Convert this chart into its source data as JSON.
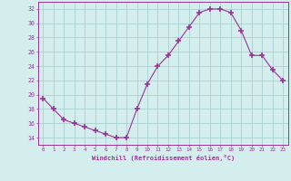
{
  "x": [
    0,
    1,
    2,
    3,
    4,
    5,
    6,
    7,
    8,
    9,
    10,
    11,
    12,
    13,
    14,
    15,
    16,
    17,
    18,
    19,
    20,
    21,
    22,
    23
  ],
  "y": [
    19.5,
    18.0,
    16.5,
    16.0,
    15.5,
    15.0,
    14.5,
    14.0,
    14.0,
    18.0,
    21.5,
    24.0,
    25.5,
    27.5,
    29.5,
    31.5,
    32.0,
    32.0,
    31.5,
    29.0,
    25.5,
    25.5,
    23.5,
    22.0
  ],
  "line_color": "#993399",
  "marker": "+",
  "markersize": 4,
  "markeredgewidth": 1.2,
  "background_color": "#d4eeed",
  "grid_color": "#aacfcf",
  "xlabel": "Windchill (Refroidissement éolien,°C)",
  "ylabel": "",
  "xlim": [
    -0.5,
    23.5
  ],
  "ylim": [
    13,
    33
  ],
  "yticks": [
    14,
    16,
    18,
    20,
    22,
    24,
    26,
    28,
    30,
    32
  ],
  "xticks": [
    0,
    1,
    2,
    3,
    4,
    5,
    6,
    7,
    8,
    9,
    10,
    11,
    12,
    13,
    14,
    15,
    16,
    17,
    18,
    19,
    20,
    21,
    22,
    23
  ],
  "tick_color": "#993399",
  "label_color": "#993399",
  "spine_color": "#993399",
  "linewidth": 0.8
}
